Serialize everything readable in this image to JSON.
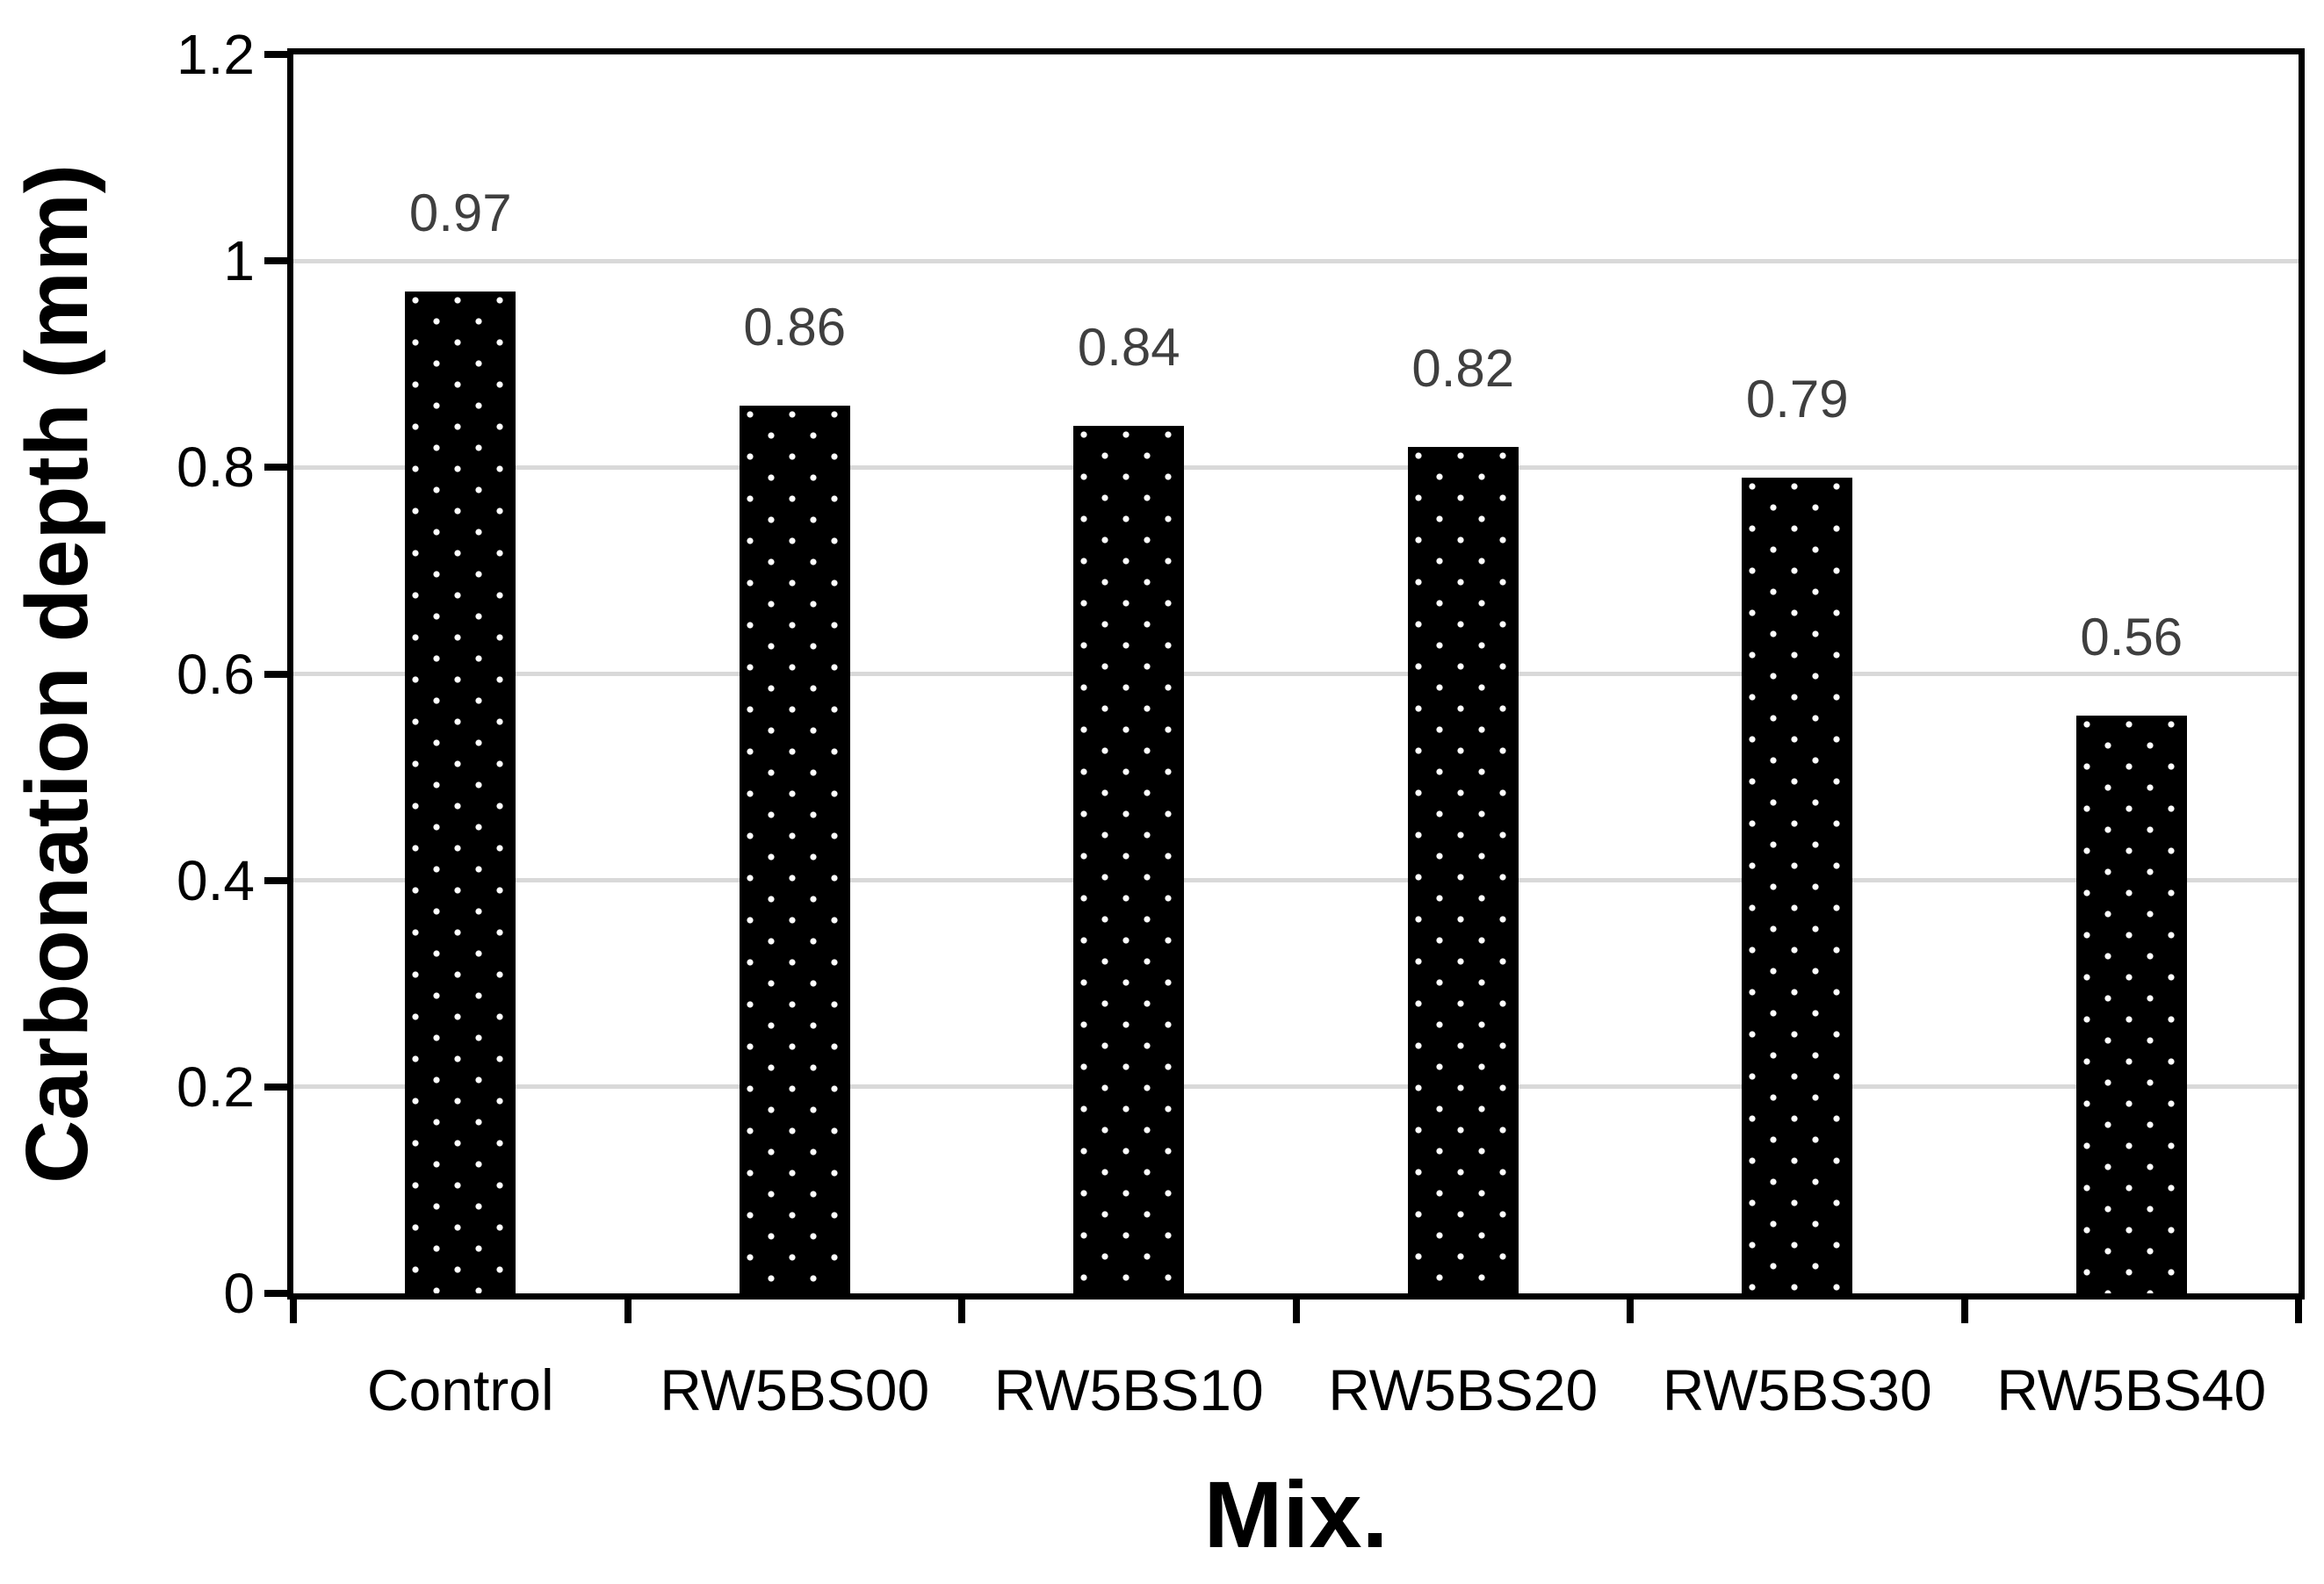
{
  "chart_data": {
    "type": "bar",
    "title": "",
    "xlabel": "Mix.",
    "ylabel": "Carbonation depth (mm)",
    "categories": [
      "Control",
      "RW5BS00",
      "RW5BS10",
      "RW5BS20",
      "RW5BS30",
      "RW5BS40"
    ],
    "values": [
      0.97,
      0.86,
      0.84,
      0.82,
      0.79,
      0.56
    ],
    "data_labels": [
      "0.97",
      "0.86",
      "0.84",
      "0.82",
      "0.79",
      "0.56"
    ],
    "ylim": [
      0,
      1.2
    ],
    "yticks": [
      0,
      0.2,
      0.4,
      0.6,
      0.8,
      1,
      1.2
    ],
    "ytick_labels": [
      "0",
      "0.2",
      "0.4",
      "0.6",
      "0.8",
      "1",
      "1.2"
    ],
    "grid": "horizontal",
    "legend": "none",
    "bar_style": {
      "fill": "#000000",
      "pattern": "white-dots",
      "dot_color": "#ffffff"
    },
    "colors": {
      "axis": "#000000",
      "gridline": "#d9d9d9",
      "data_label": "#3f3f3f",
      "tick_label": "#000000"
    }
  }
}
